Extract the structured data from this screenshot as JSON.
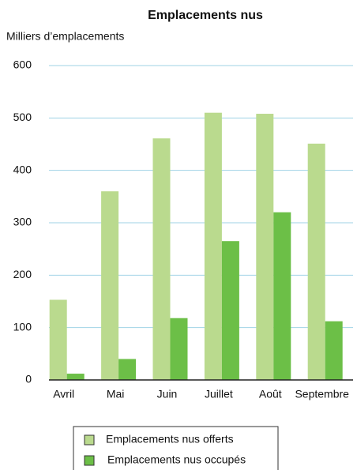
{
  "chart_data": {
    "type": "bar",
    "title": "Emplacements nus",
    "y_label": "Milliers d’emplacements",
    "categories": [
      "Avril",
      "Mai",
      "Juin",
      "Juillet",
      "Août",
      "Septembre"
    ],
    "series": [
      {
        "name": "Emplacements nus offerts",
        "color": "#bada8e",
        "values": [
          153,
          360,
          461,
          510,
          508,
          451
        ]
      },
      {
        "name": "Emplacements nus occupés",
        "color": "#6cbf47",
        "values": [
          12,
          40,
          118,
          265,
          320,
          112
        ]
      }
    ],
    "ylim": [
      0,
      600
    ],
    "yticks": [
      0,
      100,
      200,
      300,
      400,
      500,
      600
    ],
    "grid": true
  }
}
